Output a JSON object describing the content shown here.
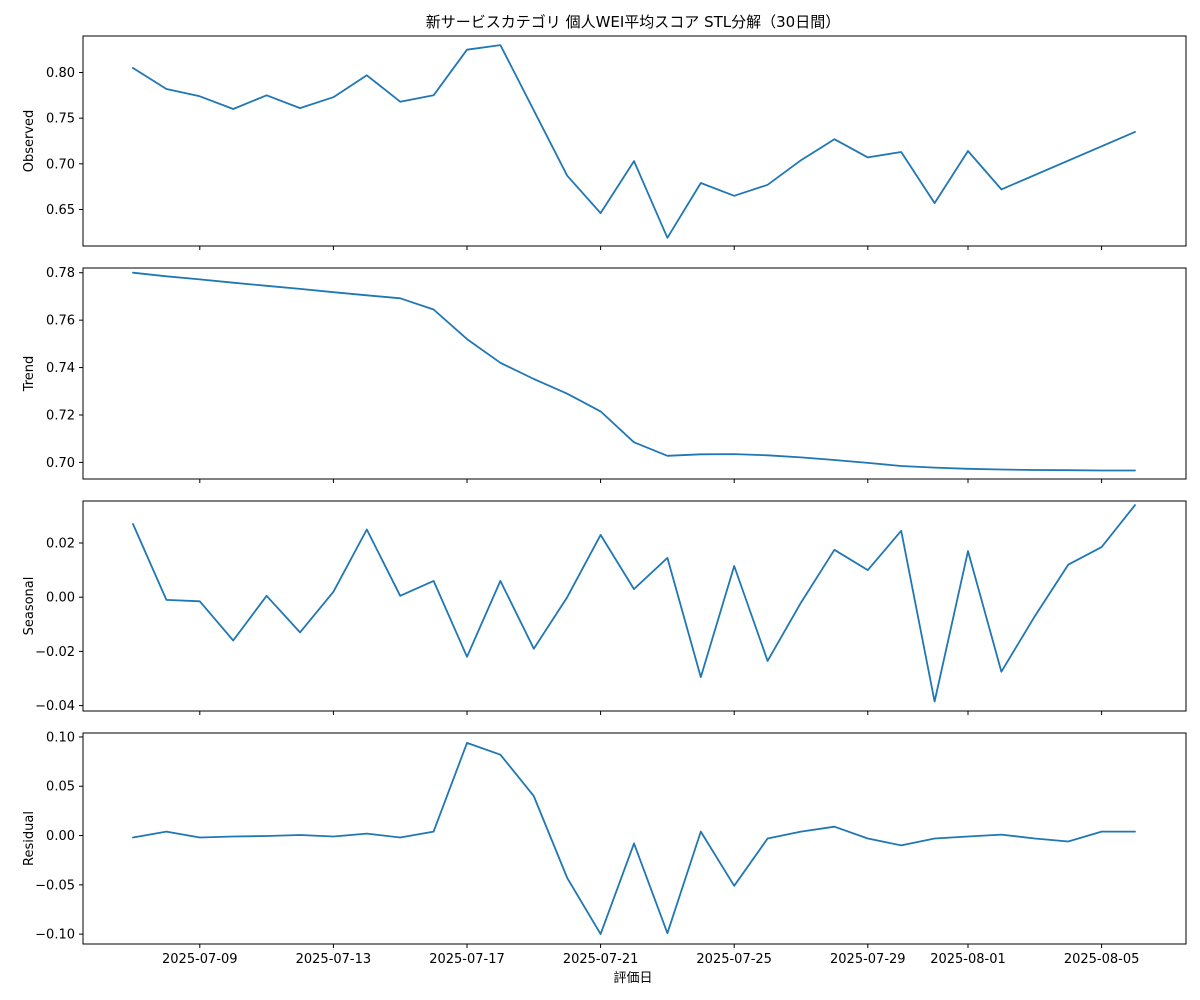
{
  "chart_data": {
    "type": "line",
    "title": "新サービスカテゴリ 個人WEI平均スコア STL分解（30日間）",
    "xlabel": "評価日",
    "color": "#1f77b4",
    "x": [
      "2025-07-07",
      "2025-07-08",
      "2025-07-09",
      "2025-07-10",
      "2025-07-11",
      "2025-07-12",
      "2025-07-13",
      "2025-07-14",
      "2025-07-15",
      "2025-07-16",
      "2025-07-17",
      "2025-07-18",
      "2025-07-20",
      "2025-07-21",
      "2025-07-22",
      "2025-07-23",
      "2025-07-24",
      "2025-07-25",
      "2025-07-26",
      "2025-07-27",
      "2025-07-28",
      "2025-07-29",
      "2025-07-30",
      "2025-07-31",
      "2025-08-01",
      "2025-08-02",
      "2025-08-06"
    ],
    "x_ticks": [
      "2025-07-09",
      "2025-07-13",
      "2025-07-17",
      "2025-07-21",
      "2025-07-25",
      "2025-07-29",
      "2025-08-01",
      "2025-08-05"
    ],
    "panels": [
      {
        "ylabel": "Observed",
        "ylim": [
          0.61,
          0.84
        ],
        "yticks": [
          0.65,
          0.7,
          0.75,
          0.8
        ],
        "tick_decimals": 2,
        "points": [
          [
            "2025-07-07",
            0.805
          ],
          [
            "2025-07-08",
            0.782
          ],
          [
            "2025-07-09",
            0.774
          ],
          [
            "2025-07-10",
            0.76
          ],
          [
            "2025-07-11",
            0.775
          ],
          [
            "2025-07-12",
            0.761
          ],
          [
            "2025-07-13",
            0.773
          ],
          [
            "2025-07-14",
            0.797
          ],
          [
            "2025-07-15",
            0.768
          ],
          [
            "2025-07-16",
            0.775
          ],
          [
            "2025-07-17",
            0.825
          ],
          [
            "2025-07-18",
            0.83
          ],
          [
            "2025-07-20",
            0.687
          ],
          [
            "2025-07-21",
            0.646
          ],
          [
            "2025-07-22",
            0.703
          ],
          [
            "2025-07-23",
            0.619
          ],
          [
            "2025-07-24",
            0.679
          ],
          [
            "2025-07-25",
            0.665
          ],
          [
            "2025-07-26",
            0.677
          ],
          [
            "2025-07-27",
            0.704
          ],
          [
            "2025-07-28",
            0.727
          ],
          [
            "2025-07-29",
            0.707
          ],
          [
            "2025-07-30",
            0.713
          ],
          [
            "2025-07-31",
            0.657
          ],
          [
            "2025-08-01",
            0.714
          ],
          [
            "2025-08-02",
            0.672
          ],
          [
            "2025-08-06",
            0.735
          ]
        ]
      },
      {
        "ylabel": "Trend",
        "ylim": [
          0.693,
          0.782
        ],
        "yticks": [
          0.7,
          0.72,
          0.74,
          0.76,
          0.78
        ],
        "tick_decimals": 2,
        "points": [
          [
            "2025-07-07",
            0.78
          ],
          [
            "2025-07-08",
            0.7785
          ],
          [
            "2025-07-09",
            0.7772
          ],
          [
            "2025-07-10",
            0.7758
          ],
          [
            "2025-07-11",
            0.7745
          ],
          [
            "2025-07-12",
            0.7732
          ],
          [
            "2025-07-13",
            0.7718
          ],
          [
            "2025-07-14",
            0.7705
          ],
          [
            "2025-07-15",
            0.7692
          ],
          [
            "2025-07-16",
            0.7645
          ],
          [
            "2025-07-17",
            0.752
          ],
          [
            "2025-07-18",
            0.742
          ],
          [
            "2025-07-19",
            0.7352
          ],
          [
            "2025-07-20",
            0.729
          ],
          [
            "2025-07-21",
            0.7215
          ],
          [
            "2025-07-22",
            0.7085
          ],
          [
            "2025-07-23",
            0.7028
          ],
          [
            "2025-07-24",
            0.7034
          ],
          [
            "2025-07-25",
            0.7035
          ],
          [
            "2025-07-26",
            0.703
          ],
          [
            "2025-07-27",
            0.7021
          ],
          [
            "2025-07-28",
            0.701
          ],
          [
            "2025-07-29",
            0.6998
          ],
          [
            "2025-07-30",
            0.6985
          ],
          [
            "2025-07-31",
            0.6978
          ],
          [
            "2025-08-01",
            0.6973
          ],
          [
            "2025-08-02",
            0.697
          ],
          [
            "2025-08-03",
            0.6968
          ],
          [
            "2025-08-04",
            0.6967
          ],
          [
            "2025-08-05",
            0.6966
          ],
          [
            "2025-08-06",
            0.6966
          ]
        ]
      },
      {
        "ylabel": "Seasonal",
        "ylim": [
          -0.042,
          0.0355
        ],
        "yticks": [
          -0.04,
          -0.02,
          0.0,
          0.02
        ],
        "tick_decimals": 2,
        "points": [
          [
            "2025-07-07",
            0.027
          ],
          [
            "2025-07-08",
            -0.001
          ],
          [
            "2025-07-09",
            -0.0015
          ],
          [
            "2025-07-10",
            -0.016
          ],
          [
            "2025-07-11",
            0.0005
          ],
          [
            "2025-07-12",
            -0.013
          ],
          [
            "2025-07-13",
            0.002
          ],
          [
            "2025-07-14",
            0.025
          ],
          [
            "2025-07-15",
            0.0005
          ],
          [
            "2025-07-16",
            0.006
          ],
          [
            "2025-07-17",
            -0.022
          ],
          [
            "2025-07-18",
            0.006
          ],
          [
            "2025-07-19",
            -0.019
          ],
          [
            "2025-07-20",
            0.0
          ],
          [
            "2025-07-21",
            0.023
          ],
          [
            "2025-07-22",
            0.003
          ],
          [
            "2025-07-23",
            0.0145
          ],
          [
            "2025-07-24",
            -0.0295
          ],
          [
            "2025-07-25",
            0.0115
          ],
          [
            "2025-07-26",
            -0.0235
          ],
          [
            "2025-07-27",
            -0.002
          ],
          [
            "2025-07-28",
            0.0175
          ],
          [
            "2025-07-29",
            0.01
          ],
          [
            "2025-07-30",
            0.0245
          ],
          [
            "2025-07-31",
            -0.0385
          ],
          [
            "2025-08-01",
            0.017
          ],
          [
            "2025-08-02",
            -0.0275
          ],
          [
            "2025-08-03",
            -0.007
          ],
          [
            "2025-08-04",
            0.012
          ],
          [
            "2025-08-05",
            0.0185
          ],
          [
            "2025-08-06",
            0.034
          ]
        ]
      },
      {
        "ylabel": "Residual",
        "ylim": [
          -0.11,
          0.104
        ],
        "yticks": [
          -0.1,
          -0.05,
          0.0,
          0.05,
          0.1
        ],
        "tick_decimals": 2,
        "points": [
          [
            "2025-07-07",
            -0.002
          ],
          [
            "2025-07-08",
            0.004
          ],
          [
            "2025-07-09",
            -0.002
          ],
          [
            "2025-07-10",
            -0.001
          ],
          [
            "2025-07-11",
            -0.0005
          ],
          [
            "2025-07-12",
            0.0005
          ],
          [
            "2025-07-13",
            -0.001
          ],
          [
            "2025-07-14",
            0.002
          ],
          [
            "2025-07-15",
            -0.002
          ],
          [
            "2025-07-16",
            0.004
          ],
          [
            "2025-07-17",
            0.094
          ],
          [
            "2025-07-18",
            0.082
          ],
          [
            "2025-07-19",
            0.04
          ],
          [
            "2025-07-20",
            -0.043
          ],
          [
            "2025-07-21",
            -0.1
          ],
          [
            "2025-07-22",
            -0.008
          ],
          [
            "2025-07-23",
            -0.099
          ],
          [
            "2025-07-24",
            0.004
          ],
          [
            "2025-07-25",
            -0.051
          ],
          [
            "2025-07-26",
            -0.003
          ],
          [
            "2025-07-27",
            0.004
          ],
          [
            "2025-07-28",
            0.009
          ],
          [
            "2025-07-29",
            -0.003
          ],
          [
            "2025-07-30",
            -0.01
          ],
          [
            "2025-07-31",
            -0.003
          ],
          [
            "2025-08-01",
            -0.001
          ],
          [
            "2025-08-02",
            0.001
          ],
          [
            "2025-08-03",
            -0.003
          ],
          [
            "2025-08-04",
            -0.006
          ],
          [
            "2025-08-05",
            0.004
          ],
          [
            "2025-08-06",
            0.004
          ]
        ]
      }
    ]
  }
}
